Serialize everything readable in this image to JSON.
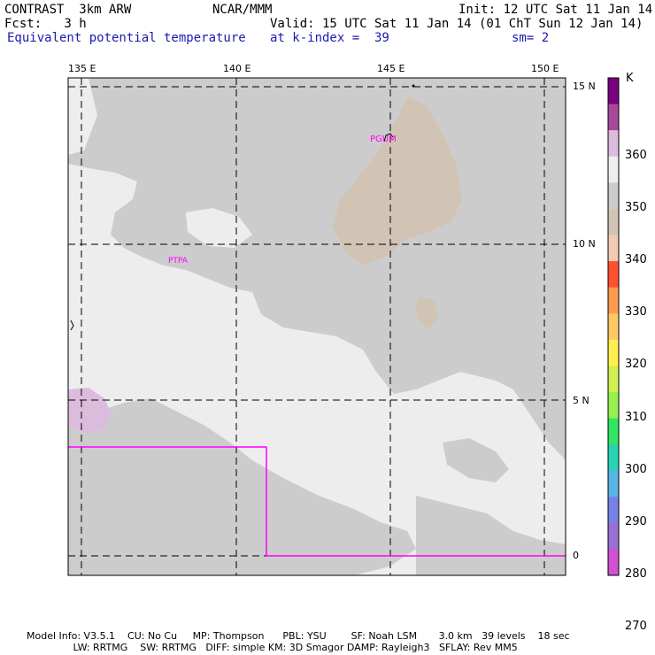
{
  "header": {
    "line1_left": "CONTRAST  3km ARW",
    "line1_center": "NCAR/MMM",
    "line1_right": "Init: 12 UTC Sat 11 Jan 14",
    "line2_left": "Fcst:   3 h",
    "line2_right": "Valid: 15 UTC Sat 11 Jan 14 (01 ChT Sun 12 Jan 14)",
    "line3_left": "Equivalent potential temperature",
    "line3_center": "at k-index =  39",
    "line3_right": "sm= 2"
  },
  "map": {
    "lon_labels": [
      "135 E",
      "140 E",
      "145 E",
      "150 E"
    ],
    "lat_labels": [
      "15 N",
      "10 N",
      "5 N",
      "0"
    ],
    "stations": [
      {
        "id": "PGUM",
        "label": "PGUM"
      },
      {
        "id": "PTPA",
        "label": "PTPA"
      }
    ],
    "colors": {
      "light_gray": "#ededed",
      "mid_gray": "#cccccc",
      "tan": "#d2c4b4",
      "lilac": "#dcbcdc",
      "magenta_line": "#ff00ff"
    }
  },
  "colorbar": {
    "unit": "K",
    "labels": [
      "360",
      "350",
      "340",
      "330",
      "320",
      "310",
      "300",
      "290",
      "280",
      "270"
    ],
    "colors": [
      "#7a0082",
      "#a8489c",
      "#dcbcdc",
      "#eeeeee",
      "#cccccc",
      "#d2c4b4",
      "#f2ccb2",
      "#ff5030",
      "#ff9b50",
      "#ffc864",
      "#fff050",
      "#d2f050",
      "#96f050",
      "#32e664",
      "#28d2b4",
      "#5ab4e6",
      "#7882e6",
      "#9a70d2",
      "#d250d2"
    ]
  },
  "footer": {
    "line1": "Model Info: V3.5.1    CU: No Cu     MP: Thompson      PBL: YSU        SF: Noah LSM       3.0 km   39 levels    18 sec",
    "line2": "               LW: RRTMG    SW: RRTMG   DIFF: simple KM: 3D Smagor DAMP: Rayleigh3   SFLAY: Rev MM5"
  }
}
